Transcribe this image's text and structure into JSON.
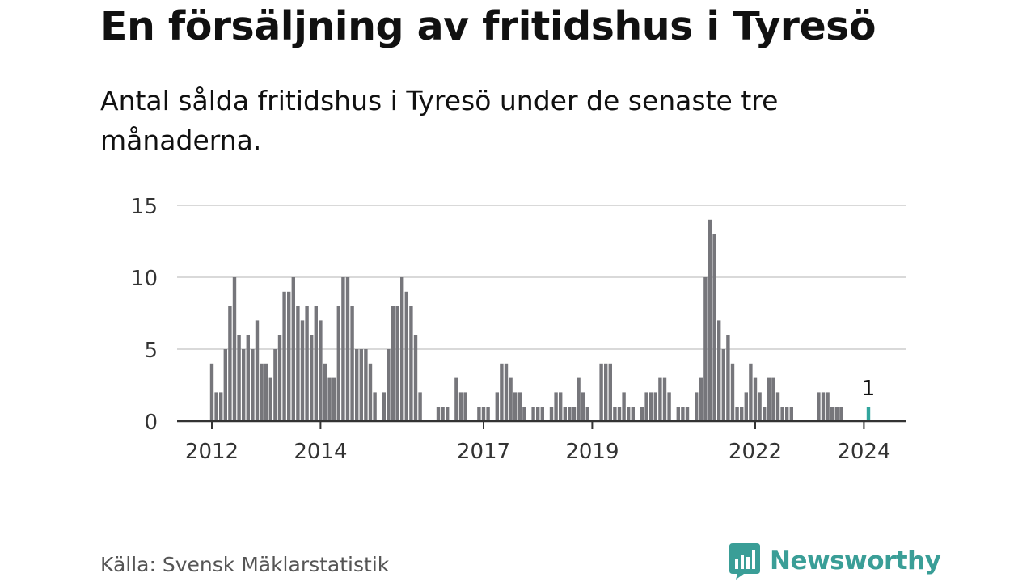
{
  "title": "En försäljning av fritidshus i Tyresö",
  "subtitle": "Antal sålda fritidshus i Tyresö under de senaste tre månaderna.",
  "source": "Källa: Svensk Mäklarstatistik",
  "brand": "Newsworthy",
  "colors": {
    "bar": "#76767b",
    "highlight": "#31a59d",
    "grid": "#d9d9d9",
    "axis": "#333333",
    "brand": "#3a9e97"
  },
  "chart_data": {
    "type": "bar",
    "title": "En försäljning av fritidshus i Tyresö",
    "subtitle": "Antal sålda fritidshus i Tyresö under de senaste tre månaderna.",
    "xlabel": "",
    "ylabel": "",
    "ylim": [
      0,
      15
    ],
    "yticks": [
      0,
      5,
      10,
      15
    ],
    "xtick_labels": [
      "2012",
      "2014",
      "2017",
      "2019",
      "2022",
      "2024"
    ],
    "grid": true,
    "legend": "none",
    "x_start": "2012-01",
    "x_end": "2024-02",
    "highlight": {
      "x": "2024-02",
      "value": 1,
      "label": "1"
    },
    "series": [
      {
        "values": [
          4,
          2,
          2,
          5,
          8,
          10,
          6,
          5,
          6,
          5,
          7,
          4,
          4,
          3,
          5,
          6,
          9,
          9,
          10,
          8,
          7,
          8,
          6,
          8,
          7,
          4,
          3,
          3,
          8,
          10,
          10,
          8,
          5,
          5,
          5,
          4,
          2,
          0,
          2,
          5,
          8,
          8,
          10,
          9,
          8,
          6,
          2,
          0,
          0,
          0,
          1,
          1,
          1,
          0,
          3,
          2,
          2,
          0,
          0,
          1,
          1,
          1,
          0,
          2,
          4,
          4,
          3,
          2,
          2,
          1,
          0,
          1,
          1,
          1,
          0,
          1,
          2,
          2,
          1,
          1,
          1,
          3,
          2,
          1,
          0,
          0,
          4,
          4,
          4,
          1,
          1,
          2,
          1,
          1,
          0,
          1,
          2,
          2,
          2,
          3,
          3,
          2,
          0,
          1,
          1,
          1,
          0,
          2,
          3,
          10,
          14,
          13,
          7,
          5,
          6,
          4,
          1,
          1,
          2,
          4,
          3,
          2,
          1,
          3,
          3,
          2,
          1,
          1,
          1,
          0,
          0,
          0,
          0,
          0,
          2,
          2,
          2,
          1,
          1,
          1,
          0,
          0,
          0,
          0,
          0,
          1
        ]
      }
    ]
  }
}
